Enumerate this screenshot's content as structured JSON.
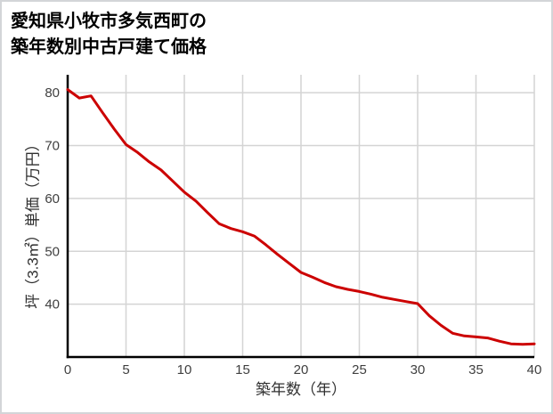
{
  "window": {
    "background": "#ffffff",
    "border_color": "#d3d5d8"
  },
  "title": {
    "lines": [
      "愛知県小牧市多気西町の",
      "築年数別中古戸建て価格"
    ]
  },
  "chart_data": {
    "type": "line",
    "title": "愛知県小牧市多気西町の築年数別中古戸建て価格",
    "xlabel": "築年数（年）",
    "ylabel": "坪（3.3㎡）単価（万円）",
    "x": [
      0,
      1,
      2,
      3,
      4,
      5,
      6,
      7,
      8,
      9,
      10,
      11,
      12,
      13,
      14,
      15,
      16,
      17,
      18,
      19,
      20,
      21,
      22,
      23,
      24,
      25,
      26,
      27,
      28,
      29,
      30,
      31,
      32,
      33,
      34,
      35,
      36,
      37,
      38,
      39,
      40
    ],
    "y": [
      80.6,
      79.0,
      79.4,
      76.2,
      73.1,
      70.2,
      68.7,
      66.9,
      65.4,
      63.3,
      61.2,
      59.5,
      57.3,
      55.2,
      54.3,
      53.7,
      52.9,
      51.2,
      49.4,
      47.7,
      46.0,
      45.1,
      44.1,
      43.3,
      42.8,
      42.4,
      41.9,
      41.3,
      40.9,
      40.5,
      40.1,
      37.8,
      36.0,
      34.5,
      34.0,
      33.8,
      33.6,
      33.0,
      32.5,
      32.4,
      32.5
    ],
    "xlim": [
      0,
      40
    ],
    "ylim": [
      30,
      83.4
    ],
    "x_ticks": [
      0,
      5,
      10,
      15,
      20,
      25,
      30,
      35,
      40
    ],
    "y_ticks": [
      40,
      50,
      60,
      70,
      80
    ],
    "grid": true,
    "legend": false,
    "line_color": "#cc0000",
    "grid_color": "#d4d4d4",
    "axis_color": "#000000",
    "tick_label_color": "#3f3f3f"
  }
}
